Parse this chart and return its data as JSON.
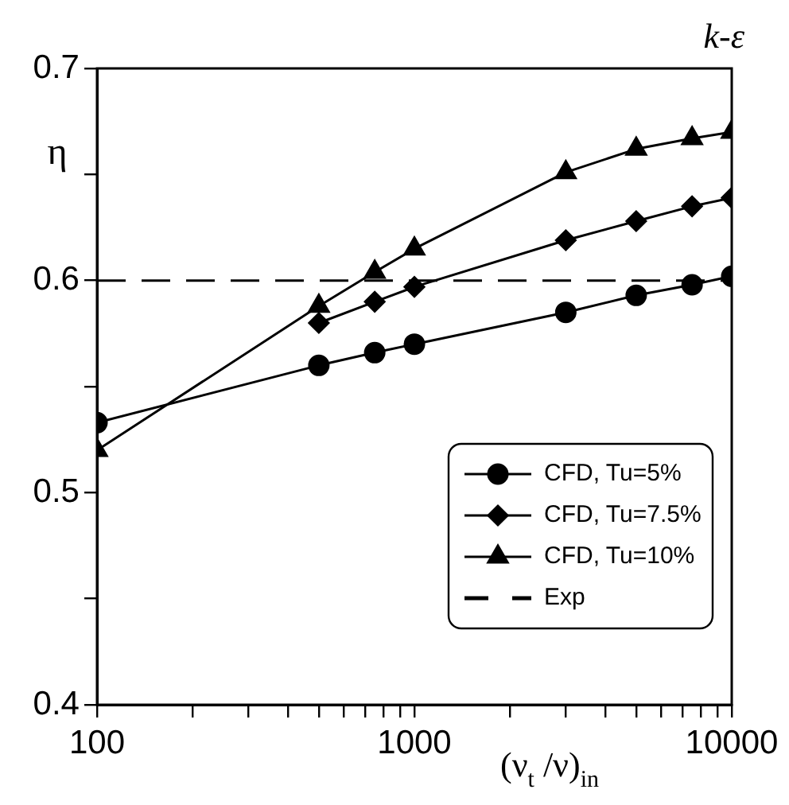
{
  "chart_data": {
    "type": "line",
    "title": "k-ε",
    "xlabel": "(ν$_{t}$ /ν)$_{in}$",
    "ylabel": "η",
    "log": "x",
    "grid": false,
    "legend": "bottom right",
    "xlim": [
      100,
      10000
    ],
    "xticks": [
      100,
      {
        "value": 200,
        "label": null
      },
      {
        "value": 300,
        "label": null
      },
      {
        "value": 400,
        "label": null
      },
      {
        "value": 500,
        "label": null
      },
      {
        "value": 600,
        "label": null
      },
      {
        "value": 700,
        "label": null
      },
      {
        "value": 800,
        "label": null
      },
      {
        "value": 900,
        "label": null
      },
      1000,
      {
        "value": 2000,
        "label": null
      },
      {
        "value": 3000,
        "label": null
      },
      {
        "value": 4000,
        "label": null
      },
      {
        "value": 5000,
        "label": null
      },
      {
        "value": 6000,
        "label": null
      },
      {
        "value": 7000,
        "label": null
      },
      {
        "value": 8000,
        "label": null
      },
      {
        "value": 9000,
        "label": null
      },
      10000
    ],
    "ylim": [
      0.4,
      0.7
    ],
    "yticks": [
      0.4,
      {
        "value": 0.45,
        "label": null
      },
      0.5,
      {
        "value": 0.55,
        "label": null
      },
      0.6,
      {
        "value": 0.65,
        "label": null
      },
      0.7
    ],
    "series": [
      {
        "name": "CFD, Tu=5%",
        "color": "#000000",
        "marker": "circle",
        "line_style": "solid",
        "x": [
          100,
          500,
          750,
          1000,
          3000,
          5000,
          7500,
          10000
        ],
        "values": [
          0.533,
          0.56,
          0.566,
          0.57,
          0.585,
          0.593,
          0.598,
          0.602
        ]
      },
      {
        "name": "CFD, Tu=7.5%",
        "color": "#000000",
        "marker": "diamond",
        "line_style": "solid",
        "x": [
          500,
          750,
          1000,
          3000,
          5000,
          7500,
          10000
        ],
        "values": [
          0.58,
          0.59,
          0.597,
          0.619,
          0.628,
          0.635,
          0.639
        ]
      },
      {
        "name": "CFD, Tu=10%",
        "color": "#000000",
        "marker": "triangle",
        "line_style": "solid",
        "x": [
          100,
          500,
          750,
          1000,
          3000,
          5000,
          7500,
          10000
        ],
        "values": [
          0.52,
          0.588,
          0.604,
          0.615,
          0.651,
          0.662,
          0.667,
          0.67
        ]
      },
      {
        "name": "Exp",
        "color": "#000000",
        "marker": "none",
        "line_style": "dashed",
        "x": [
          100,
          10000
        ],
        "values": [
          0.6,
          0.6
        ]
      }
    ]
  }
}
